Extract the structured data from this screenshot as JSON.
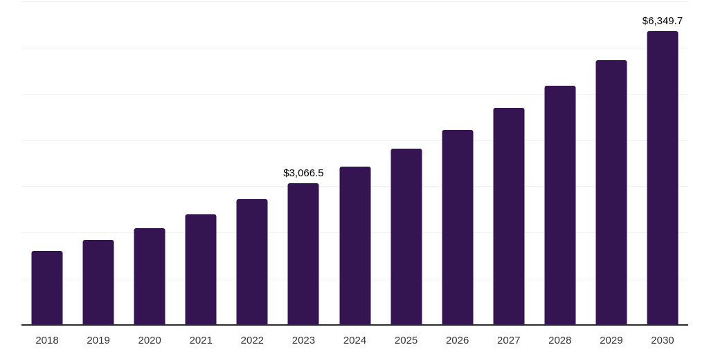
{
  "chart_data": {
    "type": "bar",
    "title": "",
    "xlabel": "",
    "ylabel": "",
    "categories": [
      "2018",
      "2019",
      "2020",
      "2021",
      "2022",
      "2023",
      "2024",
      "2025",
      "2026",
      "2027",
      "2028",
      "2029",
      "2030"
    ],
    "values": [
      1595,
      1835,
      2095,
      2395,
      2725,
      3066.5,
      3425,
      3820,
      4225,
      4700,
      5180,
      5725,
      6349.7
    ],
    "data_labels": [
      "",
      "",
      "",
      "",
      "",
      "$3,066.5",
      "",
      "",
      "",
      "",
      "",
      "",
      "$6,349.7"
    ],
    "ylim": [
      0,
      7000
    ],
    "gridline_step": 1000,
    "grid": "horizontal",
    "legend": "none",
    "colors": {
      "bar": "#351452",
      "background": "#ffffff",
      "gridline": "#f2f2f2",
      "top_gridline": "#efefef",
      "axis_line": "#2b2b2b",
      "tick_label": "#333333",
      "data_label": "#000000"
    }
  }
}
